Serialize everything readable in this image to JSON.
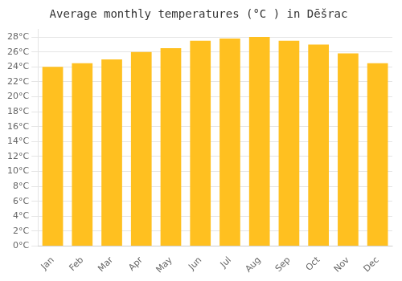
{
  "chart_data": {
    "type": "bar",
    "title": "Average monthly temperatures (°C ) in Dēšrac",
    "categories": [
      "Jan",
      "Feb",
      "Mar",
      "Apr",
      "May",
      "Jun",
      "Jul",
      "Aug",
      "Sep",
      "Oct",
      "Nov",
      "Dec"
    ],
    "values": [
      24.0,
      24.5,
      25.0,
      26.0,
      26.5,
      27.5,
      27.8,
      28.0,
      27.5,
      27.0,
      25.8,
      24.5
    ],
    "color": "#FFC020",
    "ylim": [
      0,
      29
    ],
    "yticks": [
      {
        "value": 0,
        "label": "0°C"
      },
      {
        "value": 2,
        "label": "2°C"
      },
      {
        "value": 4,
        "label": "4°C"
      },
      {
        "value": 6,
        "label": "6°C"
      },
      {
        "value": 8,
        "label": "8°C"
      },
      {
        "value": 10,
        "label": "10°C"
      },
      {
        "value": 12,
        "label": "12°C"
      },
      {
        "value": 14,
        "label": "14°C"
      },
      {
        "value": 16,
        "label": "16°C"
      },
      {
        "value": 18,
        "label": "18°C"
      },
      {
        "value": 20,
        "label": "20°C"
      },
      {
        "value": 22,
        "label": "22°C"
      },
      {
        "value": 24,
        "label": "24°C"
      },
      {
        "value": 26,
        "label": "26°C"
      },
      {
        "value": 28,
        "label": "28°C"
      }
    ],
    "grid": true
  }
}
